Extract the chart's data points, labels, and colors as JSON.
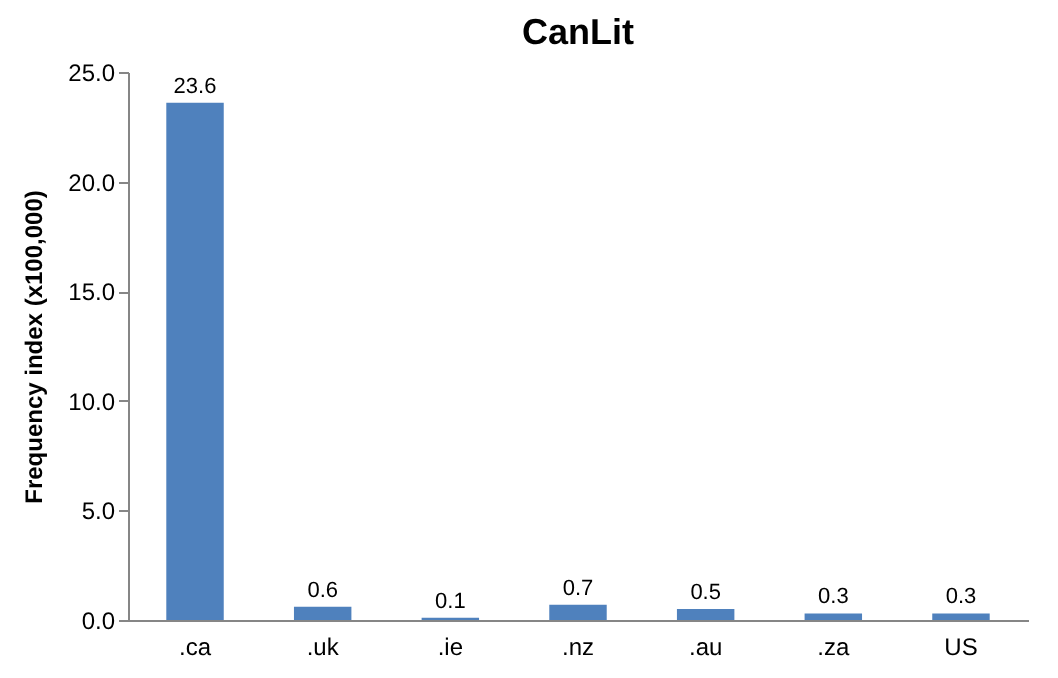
{
  "chart_data": {
    "type": "bar",
    "title": "CanLit",
    "ylabel": "Frequency index (x100,000)",
    "categories": [
      ".ca",
      ".uk",
      ".ie",
      ".nz",
      ".au",
      ".za",
      "US"
    ],
    "values": [
      23.6,
      0.6,
      0.1,
      0.7,
      0.5,
      0.3,
      0.3
    ],
    "color": "#4f81bd",
    "ylim": [
      0,
      25
    ],
    "yticks": [
      {
        "value": 0,
        "label": "0.0"
      },
      {
        "value": 5,
        "label": "5.0"
      },
      {
        "value": 10,
        "label": "10.0"
      },
      {
        "value": 15,
        "label": "15.0"
      },
      {
        "value": 20,
        "label": "20.0"
      },
      {
        "value": 25,
        "label": "25.0"
      }
    ],
    "grid": false,
    "data_labels": true
  }
}
